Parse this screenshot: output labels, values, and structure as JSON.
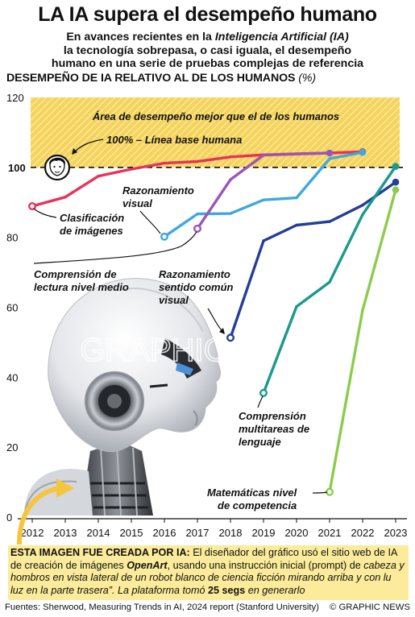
{
  "header": {
    "title": "LA IA supera el desempeño humano",
    "subtitle_line1_pre": "En avances recientes en la ",
    "subtitle_line1_italic": "Inteligencia Artificial (IA)",
    "subtitle_line2": "la  tecnología sobrepasa, o casi iguala, el desempeño",
    "subtitle_line3": "humano en una serie de pruebas complejas de referencia"
  },
  "chart_data": {
    "type": "line",
    "ylabel": "DESEMPEÑO DE IA RELATIVO AL DE LOS HUMANOS",
    "ylabel_unit": "(%)",
    "ylim": [
      0,
      120
    ],
    "yticks": [
      0,
      20,
      40,
      60,
      80,
      100,
      120
    ],
    "x": [
      2012,
      2013,
      2014,
      2015,
      2016,
      2017,
      2018,
      2019,
      2020,
      2021,
      2022,
      2023
    ],
    "band_label": "Área de desempeño mejor que el de los humanos",
    "baseline_label": "100% – Línea base humana",
    "grid": false,
    "series": [
      {
        "name": "Clasificación de imágenes",
        "color": "#e8335a",
        "x": [
          2012,
          2013,
          2014,
          2015,
          2016,
          2017,
          2018,
          2019,
          2020,
          2021,
          2022
        ],
        "values": [
          88.9,
          91.5,
          97.5,
          99.5,
          101.2,
          101.7,
          103,
          103.6,
          103.9,
          104.1,
          104.5
        ]
      },
      {
        "name": "Razonamiento visual",
        "color": "#3fa8dc",
        "x": [
          2016,
          2017,
          2018,
          2019,
          2020,
          2021,
          2022
        ],
        "values": [
          80.2,
          86.7,
          86.8,
          90.7,
          91.3,
          102.5,
          104.3
        ]
      },
      {
        "name": "Comprensión de lectura nivel medio",
        "color": "#9a56b6",
        "x": [
          2017,
          2018,
          2019,
          2020,
          2021
        ],
        "values": [
          82.5,
          96.5,
          103.5,
          103.8,
          104.1
        ]
      },
      {
        "name": "Razonamiento sentido común visual",
        "color": "#253e97",
        "x": [
          2018,
          2019,
          2020,
          2021,
          2022,
          2023
        ],
        "values": [
          51.3,
          79,
          83.5,
          84.5,
          89.2,
          95.8
        ]
      },
      {
        "name": "Comprensión multitareas de lenguaje",
        "color": "#1a9a8e",
        "x": [
          2019,
          2020,
          2021,
          2022,
          2023
        ],
        "values": [
          35.5,
          60.2,
          67.2,
          86.5,
          100.3
        ]
      },
      {
        "name": "Matemáticas nivel de competencia",
        "color": "#8ccc4a",
        "x": [
          2021,
          2022,
          2023
        ],
        "values": [
          7.2,
          59.2,
          93.6
        ]
      }
    ],
    "series_labels": [
      {
        "line1": "Clasificación",
        "line2": "de imágenes"
      },
      {
        "line1": "Razonamiento",
        "line2": "visual"
      },
      {
        "line1": "Comprensión de",
        "line2": "lectura nivel medio"
      },
      {
        "line1": "Razonamiento",
        "line2": "sentido común",
        "line3": "visual"
      },
      {
        "line1": "Comprensión",
        "line2": "multitareas de",
        "line3": "lenguaje"
      },
      {
        "line1": "Matemáticas nivel",
        "line2": "de competencia"
      }
    ]
  },
  "watermark": "GRAPHIC NEWS",
  "note": {
    "lead": "ESTA IMAGEN FUE CREADA POR IA:",
    "text1": " El diseñador del gráfico usó el sitio web de IA de creación de imágenes ",
    "site": "OpenArt",
    "text2": ", usando una instrucción inicial (prompt) de ",
    "prompt": "cabeza y hombros en vista lateral de un robot blanco de ciencia ficción mirando arriba y con lu luz en la parte trasera”. La plataforma tomó ",
    "time": "25 segs",
    "text3": " en generarlo"
  },
  "footer": {
    "sources": "Fuentes: Sherwood, Measuring Trends in AI, 2024 report (Stanford University)",
    "credit": "© GRAPHIC NEWS"
  },
  "colors": {
    "band": "#f4d35e",
    "note_bg": "#fbeb9a",
    "arrow": "#f4c53d"
  },
  "icons": {
    "human_face": "human-face-icon",
    "robot": "robot-head-illustration"
  }
}
